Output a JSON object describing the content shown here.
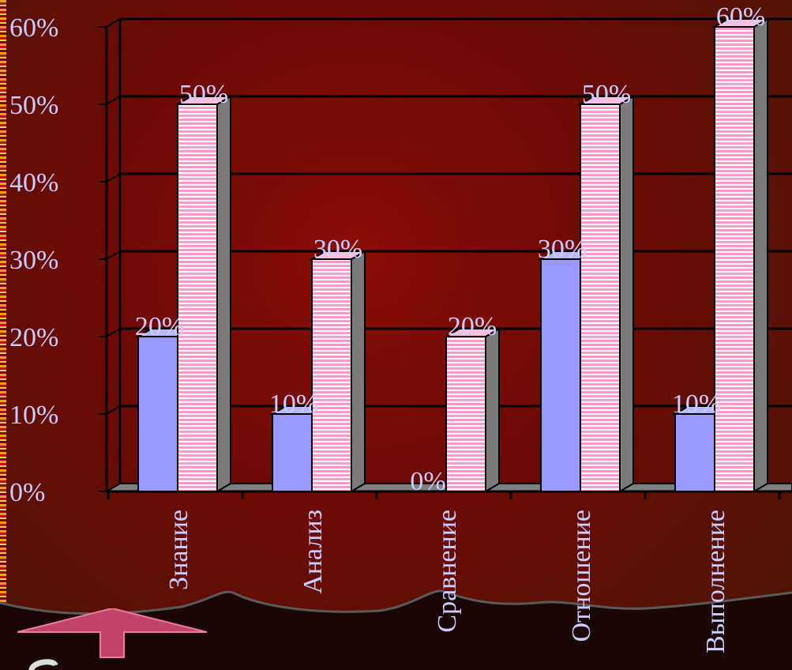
{
  "chart_data": {
    "type": "bar",
    "categories": [
      "Знание",
      "Анализ",
      "Сравнение",
      "Отношение",
      "Выполнение"
    ],
    "series": [
      {
        "values": [
          20,
          10,
          0,
          30,
          10
        ],
        "data_labels": [
          "20%",
          "10%",
          "0%",
          "30%",
          "10%"
        ]
      },
      {
        "values": [
          50,
          30,
          20,
          50,
          60
        ],
        "data_labels": [
          "50%",
          "30%",
          "20%",
          "50%",
          "60%"
        ]
      }
    ],
    "y_ticks": [
      "0%",
      "10%",
      "20%",
      "30%",
      "40%",
      "50%",
      "60%"
    ],
    "ylim": [
      0,
      60
    ],
    "grid": true,
    "three_d": true,
    "colors": {
      "series1_fill": "#9999ff",
      "series2_fill": "#ff99cc",
      "series2_stripe": "#ffffff",
      "text": "#ccccff",
      "gridline": "#000000",
      "background": "#6e0a05"
    }
  },
  "nav": {
    "arrow_color": "#c0446a",
    "icon": "up-arrow-icon"
  }
}
